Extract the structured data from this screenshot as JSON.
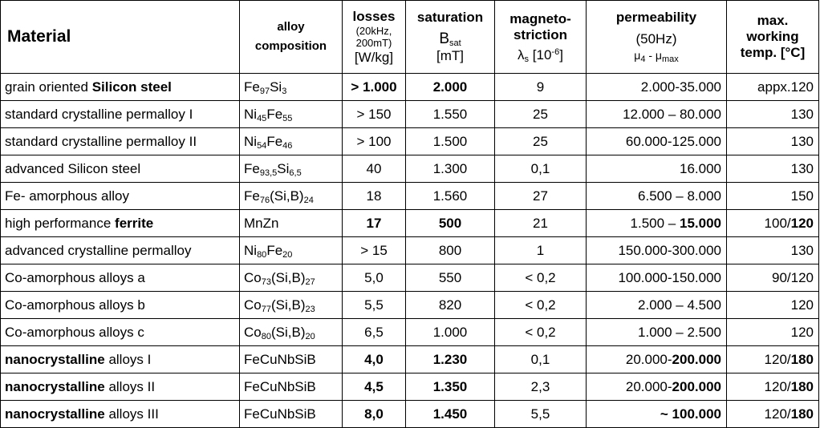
{
  "headers": {
    "material": "Material",
    "composition_line1": "alloy",
    "composition_line2": "composition",
    "losses_title": "losses",
    "losses_cond1": "(20kHz,",
    "losses_cond2": "200mT)",
    "losses_unit": "[W/kg]",
    "saturation_title": "saturation",
    "saturation_symbol": "B",
    "saturation_symbol_sub": "sat",
    "saturation_unit": "[mT]",
    "magneto_line1": "magneto-",
    "magneto_line2": "striction",
    "magneto_symbol": "λ",
    "magneto_symbol_sub": "s",
    "magneto_unit_pre": "[10",
    "magneto_unit_exp": "-6",
    "magneto_unit_post": "]",
    "perm_title": "permeability",
    "perm_freq": "(50Hz)",
    "perm_mu1": "μ",
    "perm_mu1_sub": "4",
    "perm_dash": " - ",
    "perm_mu2": "μ",
    "perm_mu2_sub": "max",
    "temp_line1": "max.",
    "temp_line2": "working",
    "temp_line3": "temp. [°C]"
  },
  "rows": [
    {
      "material": [
        {
          "t": "grain oriented "
        },
        {
          "t": "Silicon steel",
          "b": true
        }
      ],
      "composition": [
        {
          "t": "Fe"
        },
        {
          "t": "97",
          "sub": true
        },
        {
          "t": "Si"
        },
        {
          "t": "3",
          "sub": true
        }
      ],
      "losses": "> 1.000",
      "losses_b": true,
      "saturation": "2.000",
      "saturation_b": true,
      "magneto": "9",
      "permeability": [
        {
          "t": "2.000-35.000"
        }
      ],
      "temp": [
        {
          "t": "appx.120"
        }
      ]
    },
    {
      "material": [
        {
          "t": "standard crystalline permalloy I"
        }
      ],
      "composition": [
        {
          "t": "Ni"
        },
        {
          "t": "45",
          "sub": true
        },
        {
          "t": "Fe"
        },
        {
          "t": "55",
          "sub": true
        }
      ],
      "losses": "> 150",
      "saturation": "1.550",
      "magneto": "25",
      "permeability": [
        {
          "t": "12.000 – 80.000"
        }
      ],
      "temp": [
        {
          "t": "130"
        }
      ]
    },
    {
      "material": [
        {
          "t": "standard crystalline permalloy II"
        }
      ],
      "composition": [
        {
          "t": "Ni"
        },
        {
          "t": "54",
          "sub": true
        },
        {
          "t": "Fe"
        },
        {
          "t": "46",
          "sub": true
        }
      ],
      "losses": "> 100",
      "saturation": "1.500",
      "magneto": "25",
      "permeability": [
        {
          "t": "60.000-125.000"
        }
      ],
      "temp": [
        {
          "t": "130"
        }
      ]
    },
    {
      "material": [
        {
          "t": "advanced Silicon steel"
        }
      ],
      "composition": [
        {
          "t": "Fe"
        },
        {
          "t": "93,5",
          "sub": true
        },
        {
          "t": "Si"
        },
        {
          "t": "6,5",
          "sub": true
        }
      ],
      "losses": "40",
      "saturation": "1.300",
      "magneto": "0,1",
      "permeability": [
        {
          "t": "16.000"
        }
      ],
      "temp": [
        {
          "t": "130"
        }
      ]
    },
    {
      "material": [
        {
          "t": "Fe- amorphous alloy"
        }
      ],
      "composition": [
        {
          "t": "Fe"
        },
        {
          "t": "76",
          "sub": true
        },
        {
          "t": "(Si,B)"
        },
        {
          "t": "24",
          "sub": true
        }
      ],
      "losses": "18",
      "saturation": "1.560",
      "magneto": "27",
      "permeability": [
        {
          "t": "6.500 – 8.000"
        }
      ],
      "temp": [
        {
          "t": "150"
        }
      ]
    },
    {
      "material": [
        {
          "t": "high performance "
        },
        {
          "t": "ferrite",
          "b": true
        }
      ],
      "composition": [
        {
          "t": "MnZn"
        }
      ],
      "losses": "17",
      "losses_b": true,
      "saturation": "500",
      "saturation_b": true,
      "magneto": "21",
      "permeability": [
        {
          "t": "1.500 – "
        },
        {
          "t": "15.000",
          "b": true
        }
      ],
      "temp": [
        {
          "t": "100/"
        },
        {
          "t": "120",
          "b": true
        }
      ]
    },
    {
      "material": [
        {
          "t": "advanced crystalline permalloy"
        }
      ],
      "composition": [
        {
          "t": "Ni"
        },
        {
          "t": "80",
          "sub": true
        },
        {
          "t": "Fe"
        },
        {
          "t": "20",
          "sub": true
        }
      ],
      "losses": "> 15",
      "saturation": "800",
      "magneto": "1",
      "permeability": [
        {
          "t": "150.000-300.000"
        }
      ],
      "temp": [
        {
          "t": "130"
        }
      ]
    },
    {
      "material": [
        {
          "t": "Co-amorphous alloys a"
        }
      ],
      "composition": [
        {
          "t": "Co"
        },
        {
          "t": "73",
          "sub": true
        },
        {
          "t": "(Si,B)"
        },
        {
          "t": "27",
          "sub": true
        }
      ],
      "losses": "5,0",
      "saturation": "550",
      "magneto": "< 0,2",
      "permeability": [
        {
          "t": "100.000-150.000"
        }
      ],
      "temp": [
        {
          "t": "90/120"
        }
      ]
    },
    {
      "material": [
        {
          "t": "Co-amorphous alloys b"
        }
      ],
      "composition": [
        {
          "t": "Co"
        },
        {
          "t": "77",
          "sub": true
        },
        {
          "t": "(Si,B)"
        },
        {
          "t": "23",
          "sub": true
        }
      ],
      "losses": "5,5",
      "saturation": "820",
      "magneto": "< 0,2",
      "permeability": [
        {
          "t": "2.000 – 4.500"
        }
      ],
      "temp": [
        {
          "t": "120"
        }
      ]
    },
    {
      "material": [
        {
          "t": "Co-amorphous alloys c"
        }
      ],
      "composition": [
        {
          "t": "Co"
        },
        {
          "t": "80",
          "sub": true
        },
        {
          "t": "(Si,B)"
        },
        {
          "t": "20",
          "sub": true
        }
      ],
      "losses": "6,5",
      "saturation": "1.000",
      "magneto": "< 0,2",
      "permeability": [
        {
          "t": "1.000 – 2.500"
        }
      ],
      "temp": [
        {
          "t": "120"
        }
      ]
    },
    {
      "material": [
        {
          "t": "nanocrystalline",
          "b": true
        },
        {
          "t": " alloys I"
        }
      ],
      "composition": [
        {
          "t": "FeCuNbSiB"
        }
      ],
      "losses": "4,0",
      "losses_b": true,
      "saturation": "1.230",
      "saturation_b": true,
      "magneto": "0,1",
      "permeability": [
        {
          "t": "20.000-"
        },
        {
          "t": "200.000",
          "b": true
        }
      ],
      "temp": [
        {
          "t": "120/"
        },
        {
          "t": "180",
          "b": true
        }
      ]
    },
    {
      "material": [
        {
          "t": "nanocrystalline",
          "b": true
        },
        {
          "t": " alloys II"
        }
      ],
      "composition": [
        {
          "t": "FeCuNbSiB"
        }
      ],
      "losses": "4,5",
      "losses_b": true,
      "saturation": "1.350",
      "saturation_b": true,
      "magneto": "2,3",
      "permeability": [
        {
          "t": "20.000-"
        },
        {
          "t": "200.000",
          "b": true
        }
      ],
      "temp": [
        {
          "t": "120/"
        },
        {
          "t": "180",
          "b": true
        }
      ]
    },
    {
      "material": [
        {
          "t": "nanocrystalline",
          "b": true
        },
        {
          "t": " alloys III"
        }
      ],
      "composition": [
        {
          "t": "FeCuNbSiB"
        }
      ],
      "losses": "8,0",
      "losses_b": true,
      "saturation": "1.450",
      "saturation_b": true,
      "magneto": "5,5",
      "permeability": [
        {
          "t": "~ 100.000",
          "b": true
        }
      ],
      "temp": [
        {
          "t": "120/"
        },
        {
          "t": "180",
          "b": true
        }
      ]
    }
  ]
}
